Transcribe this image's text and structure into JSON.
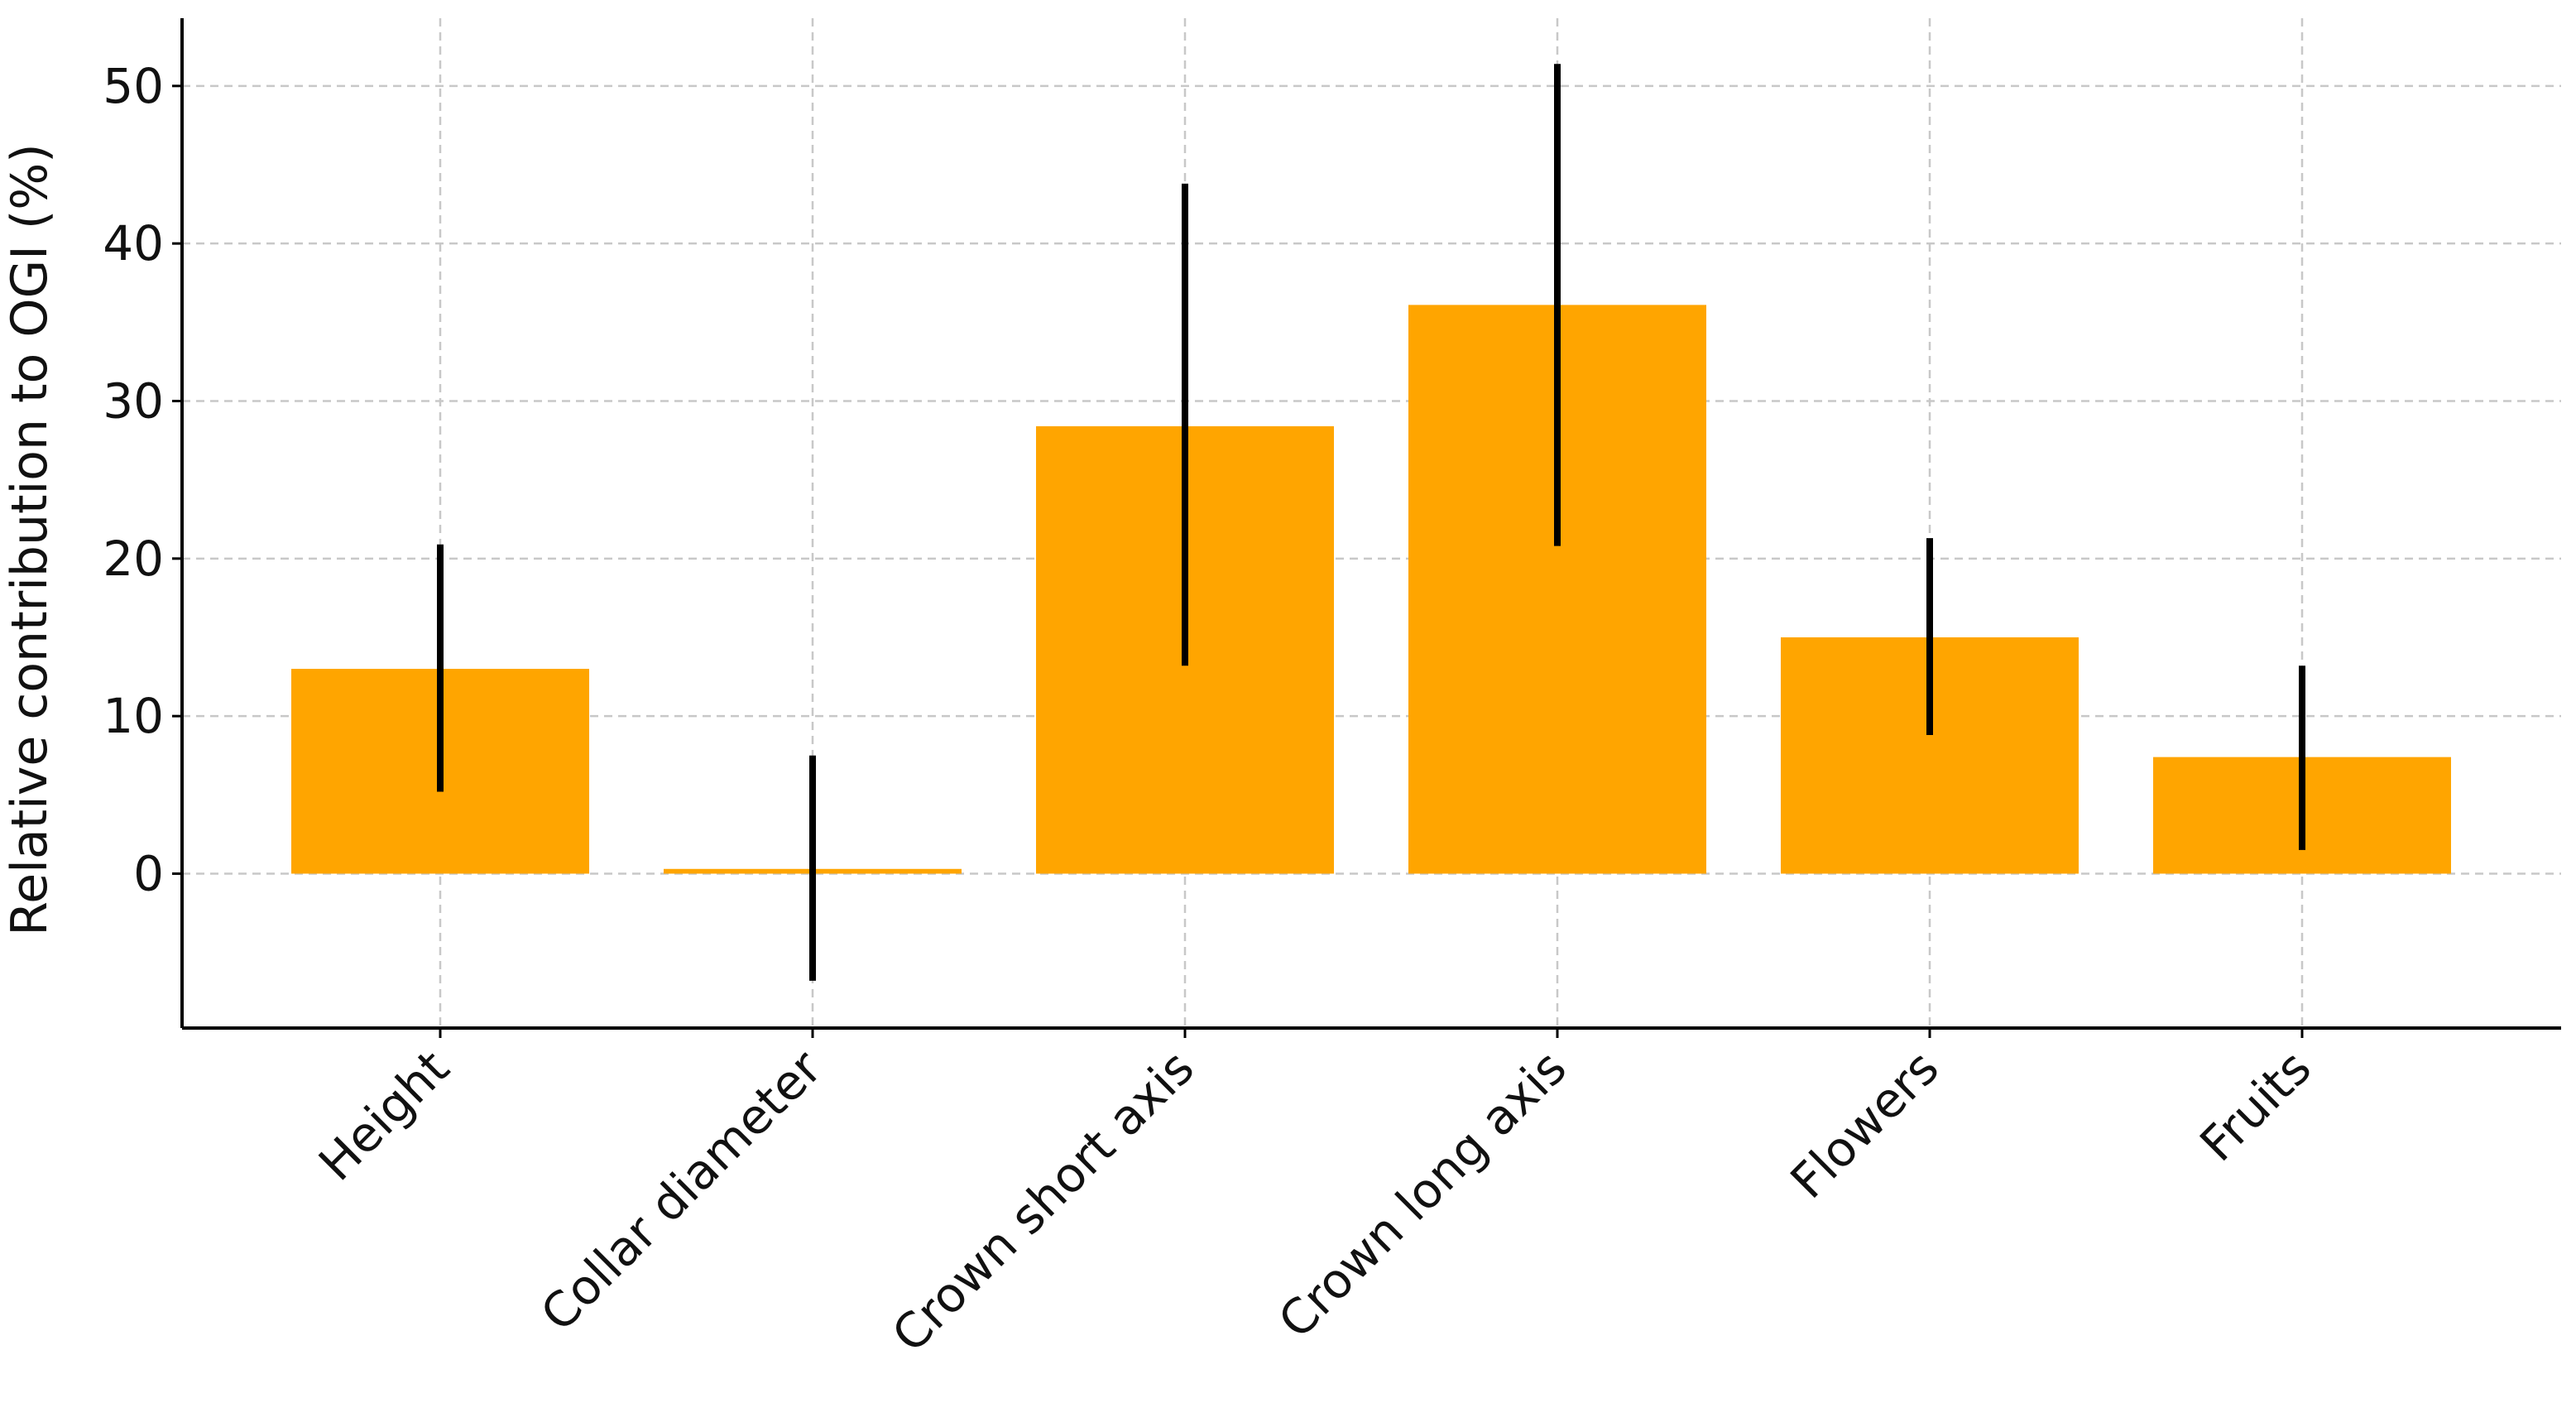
{
  "chart_data": {
    "type": "bar",
    "title": "",
    "xlabel": "",
    "ylabel": "Relative contribution to OGI (%)",
    "categories": [
      "Height",
      "Collar diameter",
      "Crown short axis",
      "Crown long axis",
      "Flowers",
      "Fruits"
    ],
    "values": [
      13.0,
      0.3,
      28.4,
      36.1,
      15.0,
      7.4
    ],
    "error_low": [
      5.2,
      -6.8,
      13.2,
      20.8,
      8.8,
      1.5
    ],
    "error_high": [
      20.9,
      7.5,
      43.8,
      51.4,
      21.3,
      13.2
    ],
    "ylim": [
      -9.8,
      54.3
    ],
    "yticks": [
      0,
      10,
      20,
      30,
      40,
      50
    ],
    "grid": true,
    "bar_color": "#FFA500",
    "error_color": "#000000"
  }
}
